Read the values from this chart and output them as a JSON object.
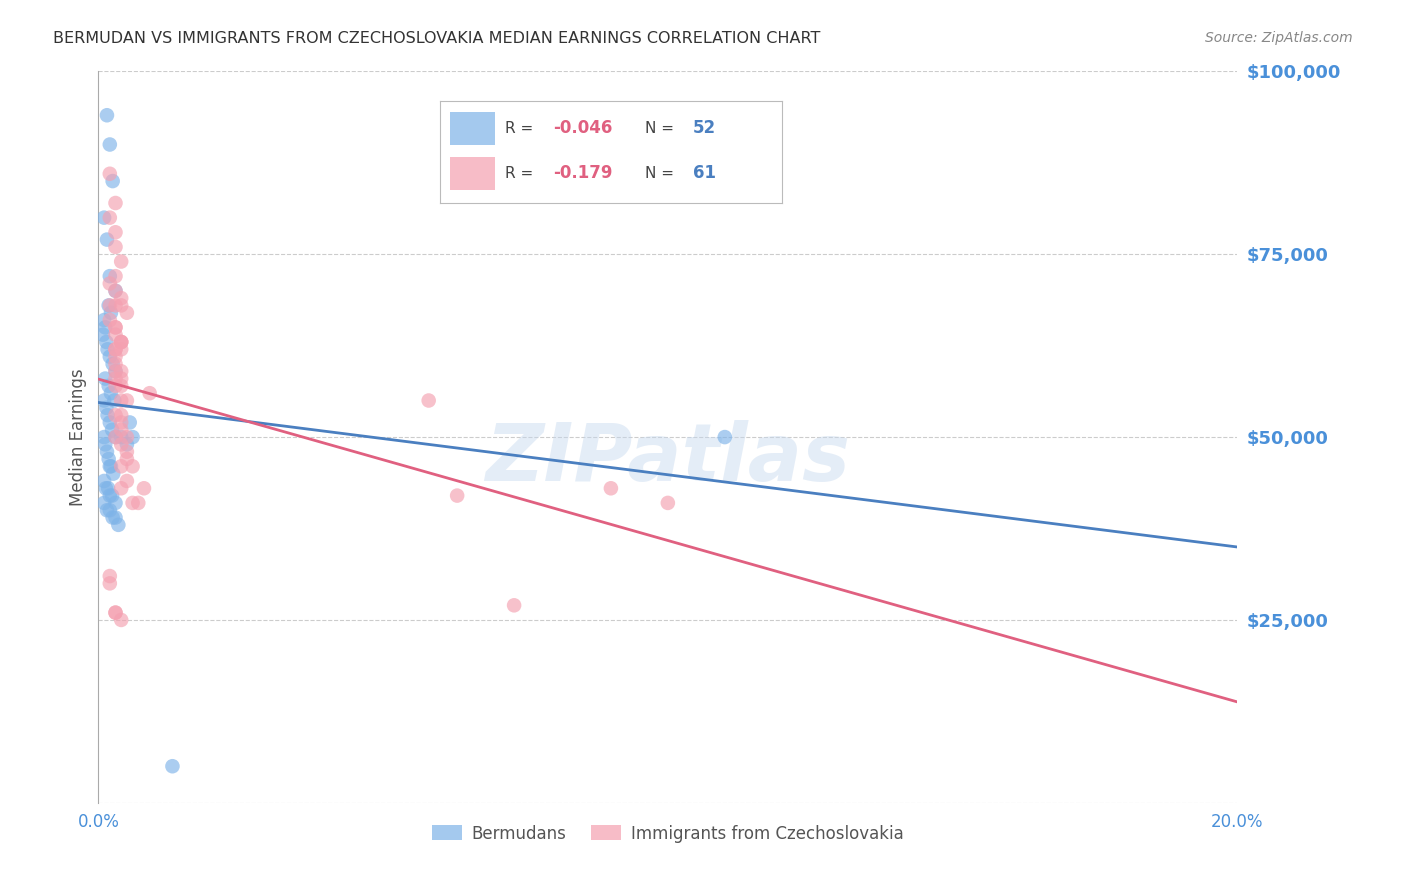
{
  "title": "BERMUDAN VS IMMIGRANTS FROM CZECHOSLOVAKIA MEDIAN EARNINGS CORRELATION CHART",
  "source": "Source: ZipAtlas.com",
  "ylabel_label": "Median Earnings",
  "x_min": 0.0,
  "x_max": 0.2,
  "y_min": 0,
  "y_max": 100000,
  "yticks": [
    0,
    25000,
    50000,
    75000,
    100000
  ],
  "ytick_labels": [
    "",
    "$25,000",
    "$50,000",
    "$75,000",
    "$100,000"
  ],
  "xticks": [
    0.0,
    0.05,
    0.1,
    0.15,
    0.2
  ],
  "xtick_labels": [
    "0.0%",
    "",
    "",
    "",
    "20.0%"
  ],
  "watermark": "ZIPatlas",
  "blue_color": "#7EB3E8",
  "pink_color": "#F4A0B0",
  "blue_line_color": "#4A7FC0",
  "pink_line_color": "#E06080",
  "title_color": "#333333",
  "tick_label_color": "#4A90D9",
  "background_color": "#FFFFFF",
  "grid_color": "#CCCCCC",
  "bermudans_x": [
    0.0015,
    0.002,
    0.0025,
    0.001,
    0.0015,
    0.002,
    0.003,
    0.0018,
    0.0022,
    0.001,
    0.0012,
    0.0008,
    0.0014,
    0.0016,
    0.002,
    0.0025,
    0.003,
    0.0012,
    0.0018,
    0.0022,
    0.0028,
    0.001,
    0.0014,
    0.0016,
    0.002,
    0.0024,
    0.003,
    0.001,
    0.0012,
    0.0015,
    0.0018,
    0.002,
    0.0022,
    0.0026,
    0.001,
    0.0013,
    0.0017,
    0.002,
    0.0024,
    0.003,
    0.001,
    0.0015,
    0.002,
    0.0025,
    0.003,
    0.0035,
    0.004,
    0.005,
    0.006,
    0.0055,
    0.11,
    0.013
  ],
  "bermudans_y": [
    94000,
    90000,
    85000,
    80000,
    77000,
    72000,
    70000,
    68000,
    67000,
    66000,
    65000,
    64000,
    63000,
    62000,
    61000,
    60000,
    59000,
    58000,
    57000,
    56000,
    55000,
    55000,
    54000,
    53000,
    52000,
    51000,
    50000,
    50000,
    49000,
    48000,
    47000,
    46000,
    46000,
    45000,
    44000,
    43000,
    43000,
    42000,
    42000,
    41000,
    41000,
    40000,
    40000,
    39000,
    39000,
    38000,
    50000,
    49000,
    50000,
    52000,
    50000,
    5000
  ],
  "czechoslovakia_x": [
    0.002,
    0.003,
    0.002,
    0.003,
    0.003,
    0.004,
    0.003,
    0.002,
    0.003,
    0.004,
    0.003,
    0.004,
    0.005,
    0.002,
    0.003,
    0.003,
    0.004,
    0.003,
    0.002,
    0.003,
    0.004,
    0.003,
    0.004,
    0.003,
    0.004,
    0.003,
    0.004,
    0.003,
    0.004,
    0.003,
    0.004,
    0.003,
    0.004,
    0.003,
    0.004,
    0.005,
    0.004,
    0.005,
    0.004,
    0.005,
    0.004,
    0.003,
    0.005,
    0.004,
    0.006,
    0.005,
    0.004,
    0.008,
    0.007,
    0.006,
    0.058,
    0.063,
    0.073,
    0.09,
    0.1,
    0.002,
    0.003,
    0.002,
    0.003,
    0.009,
    0.004
  ],
  "czechoslovakia_y": [
    86000,
    82000,
    80000,
    78000,
    76000,
    74000,
    72000,
    71000,
    70000,
    69000,
    68000,
    68000,
    67000,
    66000,
    65000,
    64000,
    63000,
    62000,
    68000,
    65000,
    63000,
    62000,
    62000,
    61000,
    63000,
    59000,
    59000,
    58000,
    57000,
    60000,
    58000,
    57000,
    55000,
    53000,
    52000,
    55000,
    53000,
    50000,
    49000,
    48000,
    51000,
    50000,
    47000,
    46000,
    46000,
    44000,
    43000,
    43000,
    41000,
    41000,
    55000,
    42000,
    27000,
    43000,
    41000,
    30000,
    26000,
    31000,
    26000,
    56000,
    25000
  ]
}
